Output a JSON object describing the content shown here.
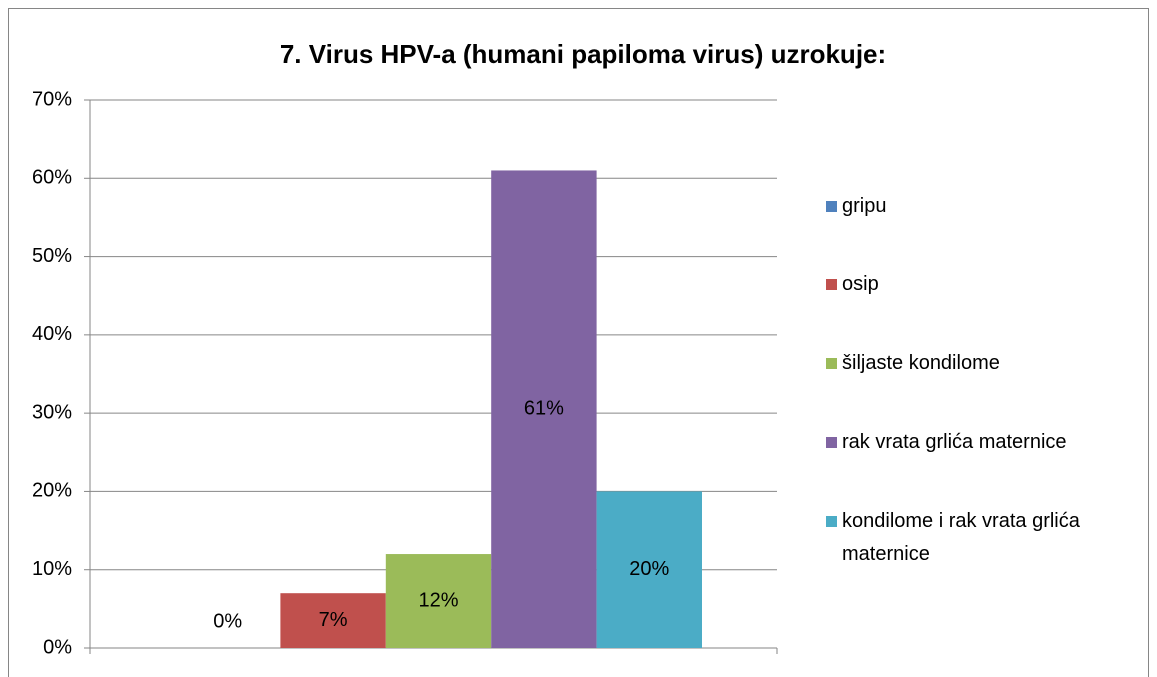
{
  "chart_data": {
    "type": "bar",
    "title": "7. Virus HPV-a (humani papiloma virus) uzrokuje:",
    "series": [
      {
        "name": "gripu",
        "color": "#4f81bd",
        "values": [
          0
        ],
        "value_labels": [
          "0%"
        ]
      },
      {
        "name": "osip",
        "color": "#c0504d",
        "values": [
          7
        ],
        "value_labels": [
          "7%"
        ]
      },
      {
        "name": "šiljaste kondilome",
        "color": "#9bbb59",
        "values": [
          12
        ],
        "value_labels": [
          "12%"
        ]
      },
      {
        "name": "rak vrata grlića maternice",
        "color": "#8064a2",
        "values": [
          61
        ],
        "value_labels": [
          "61%"
        ]
      },
      {
        "name": "kondilome i rak vrata grlića maternice",
        "color": "#4bacc6",
        "values": [
          20
        ],
        "value_labels": [
          "20%"
        ]
      }
    ],
    "ylim": [
      0,
      70
    ],
    "yticks": [
      {
        "value": 0,
        "label": "0%"
      },
      {
        "value": 10,
        "label": "10%"
      },
      {
        "value": 20,
        "label": "20%"
      },
      {
        "value": 30,
        "label": "30%"
      },
      {
        "value": 40,
        "label": "40%"
      },
      {
        "value": 50,
        "label": "50%"
      },
      {
        "value": 60,
        "label": "60%"
      },
      {
        "value": 70,
        "label": "70%"
      }
    ],
    "grid": true,
    "legend": "right"
  }
}
